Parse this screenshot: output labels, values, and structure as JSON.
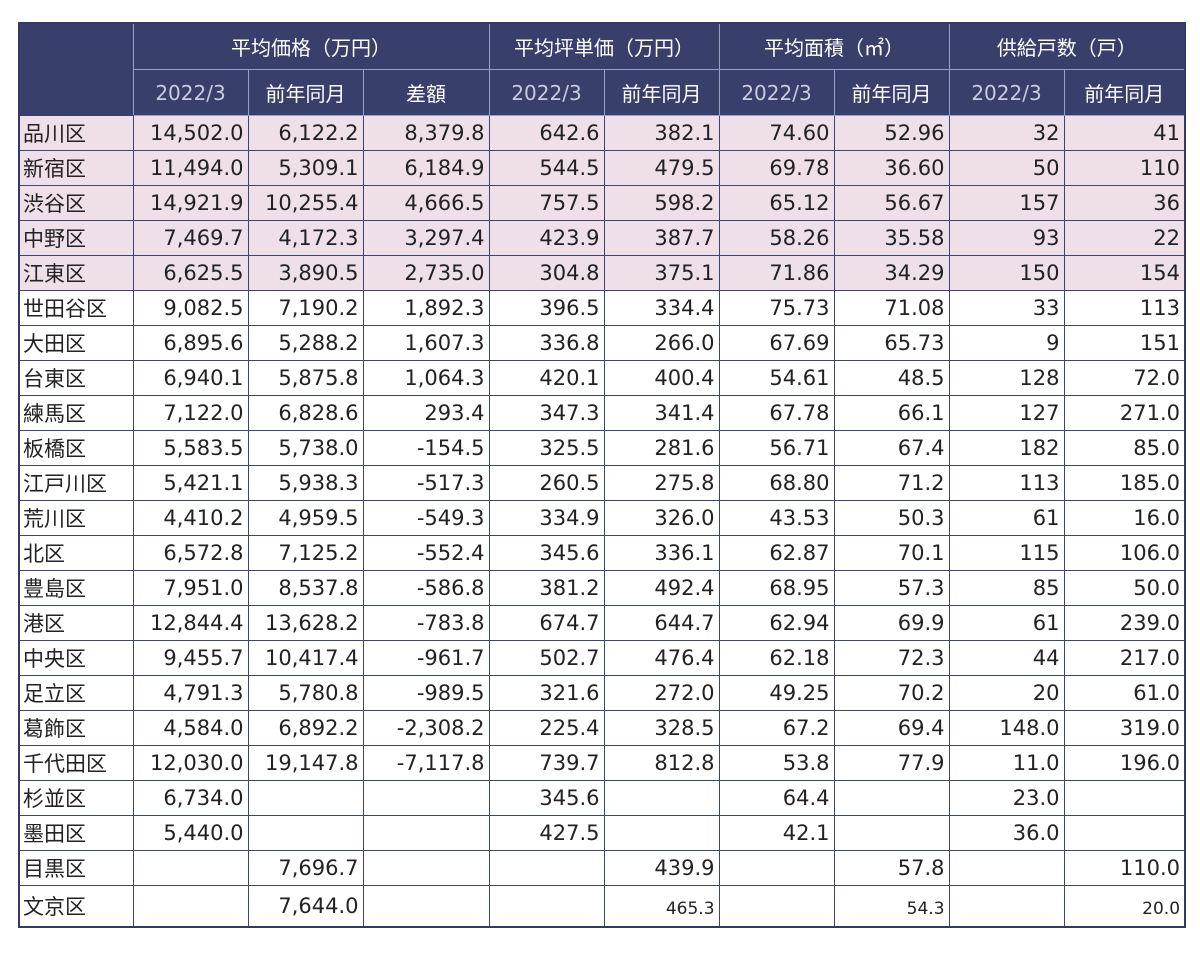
{
  "header": {
    "groups": [
      "平均価格（万円）",
      "平均坪単価（万円）",
      "平均面積（㎡）",
      "供給戸数（戸）"
    ],
    "sub": [
      "2022/3",
      "前年同月",
      "差額",
      "2022/3",
      "前年同月",
      "2022/3",
      "前年同月",
      "2022/3",
      "前年同月"
    ]
  },
  "rows": [
    {
      "ward": "品川区",
      "highlight": true,
      "cells": [
        "14,502.0",
        "6,122.2",
        "8,379.8",
        "642.6",
        "382.1",
        "74.60",
        "52.96",
        "32",
        "41"
      ]
    },
    {
      "ward": "新宿区",
      "highlight": true,
      "cells": [
        "11,494.0",
        "5,309.1",
        "6,184.9",
        "544.5",
        "479.5",
        "69.78",
        "36.60",
        "50",
        "110"
      ]
    },
    {
      "ward": "渋谷区",
      "highlight": true,
      "cells": [
        "14,921.9",
        "10,255.4",
        "4,666.5",
        "757.5",
        "598.2",
        "65.12",
        "56.67",
        "157",
        "36"
      ]
    },
    {
      "ward": "中野区",
      "highlight": true,
      "cells": [
        "7,469.7",
        "4,172.3",
        "3,297.4",
        "423.9",
        "387.7",
        "58.26",
        "35.58",
        "93",
        "22"
      ]
    },
    {
      "ward": "江東区",
      "highlight": true,
      "cells": [
        "6,625.5",
        "3,890.5",
        "2,735.0",
        "304.8",
        "375.1",
        "71.86",
        "34.29",
        "150",
        "154"
      ]
    },
    {
      "ward": "世田谷区",
      "highlight": false,
      "cells": [
        "9,082.5",
        "7,190.2",
        "1,892.3",
        "396.5",
        "334.4",
        "75.73",
        "71.08",
        "33",
        "113"
      ]
    },
    {
      "ward": "大田区",
      "highlight": false,
      "cells": [
        "6,895.6",
        "5,288.2",
        "1,607.3",
        "336.8",
        "266.0",
        "67.69",
        "65.73",
        "9",
        "151"
      ]
    },
    {
      "ward": "台東区",
      "highlight": false,
      "cells": [
        "6,940.1",
        "5,875.8",
        "1,064.3",
        "420.1",
        "400.4",
        "54.61",
        "48.5",
        "128",
        "72.0"
      ]
    },
    {
      "ward": "練馬区",
      "highlight": false,
      "cells": [
        "7,122.0",
        "6,828.6",
        "293.4",
        "347.3",
        "341.4",
        "67.78",
        "66.1",
        "127",
        "271.0"
      ]
    },
    {
      "ward": "板橋区",
      "highlight": false,
      "cells": [
        "5,583.5",
        "5,738.0",
        "-154.5",
        "325.5",
        "281.6",
        "56.71",
        "67.4",
        "182",
        "85.0"
      ]
    },
    {
      "ward": "江戸川区",
      "highlight": false,
      "cells": [
        "5,421.1",
        "5,938.3",
        "-517.3",
        "260.5",
        "275.8",
        "68.80",
        "71.2",
        "113",
        "185.0"
      ]
    },
    {
      "ward": "荒川区",
      "highlight": false,
      "cells": [
        "4,410.2",
        "4,959.5",
        "-549.3",
        "334.9",
        "326.0",
        "43.53",
        "50.3",
        "61",
        "16.0"
      ]
    },
    {
      "ward": "北区",
      "highlight": false,
      "cells": [
        "6,572.8",
        "7,125.2",
        "-552.4",
        "345.6",
        "336.1",
        "62.87",
        "70.1",
        "115",
        "106.0"
      ]
    },
    {
      "ward": "豊島区",
      "highlight": false,
      "cells": [
        "7,951.0",
        "8,537.8",
        "-586.8",
        "381.2",
        "492.4",
        "68.95",
        "57.3",
        "85",
        "50.0"
      ]
    },
    {
      "ward": "港区",
      "highlight": false,
      "cells": [
        "12,844.4",
        "13,628.2",
        "-783.8",
        "674.7",
        "644.7",
        "62.94",
        "69.9",
        "61",
        "239.0"
      ]
    },
    {
      "ward": "中央区",
      "highlight": false,
      "cells": [
        "9,455.7",
        "10,417.4",
        "-961.7",
        "502.7",
        "476.4",
        "62.18",
        "72.3",
        "44",
        "217.0"
      ]
    },
    {
      "ward": "足立区",
      "highlight": false,
      "cells": [
        "4,791.3",
        "5,780.8",
        "-989.5",
        "321.6",
        "272.0",
        "49.25",
        "70.2",
        "20",
        "61.0"
      ]
    },
    {
      "ward": "葛飾区",
      "highlight": false,
      "cells": [
        "4,584.0",
        "6,892.2",
        "-2,308.2",
        "225.4",
        "328.5",
        "67.2",
        "69.4",
        "148.0",
        "319.0"
      ]
    },
    {
      "ward": "千代田区",
      "highlight": false,
      "cells": [
        "12,030.0",
        "19,147.8",
        "-7,117.8",
        "739.7",
        "812.8",
        "53.8",
        "77.9",
        "11.0",
        "196.0"
      ]
    },
    {
      "ward": "杉並区",
      "highlight": false,
      "cells": [
        "6,734.0",
        "",
        "",
        "345.6",
        "",
        "64.4",
        "",
        "23.0",
        ""
      ]
    },
    {
      "ward": "墨田区",
      "highlight": false,
      "cells": [
        "5,440.0",
        "",
        "",
        "427.5",
        "",
        "42.1",
        "",
        "36.0",
        ""
      ]
    },
    {
      "ward": "目黒区",
      "highlight": false,
      "cells": [
        "",
        "7,696.7",
        "",
        "",
        "439.9",
        "",
        "57.8",
        "",
        "110.0"
      ]
    },
    {
      "ward": "文京区",
      "highlight": false,
      "cells": [
        "",
        "7,644.0",
        "",
        "",
        "465.3",
        "",
        "54.3",
        "",
        "20.0"
      ]
    }
  ]
}
